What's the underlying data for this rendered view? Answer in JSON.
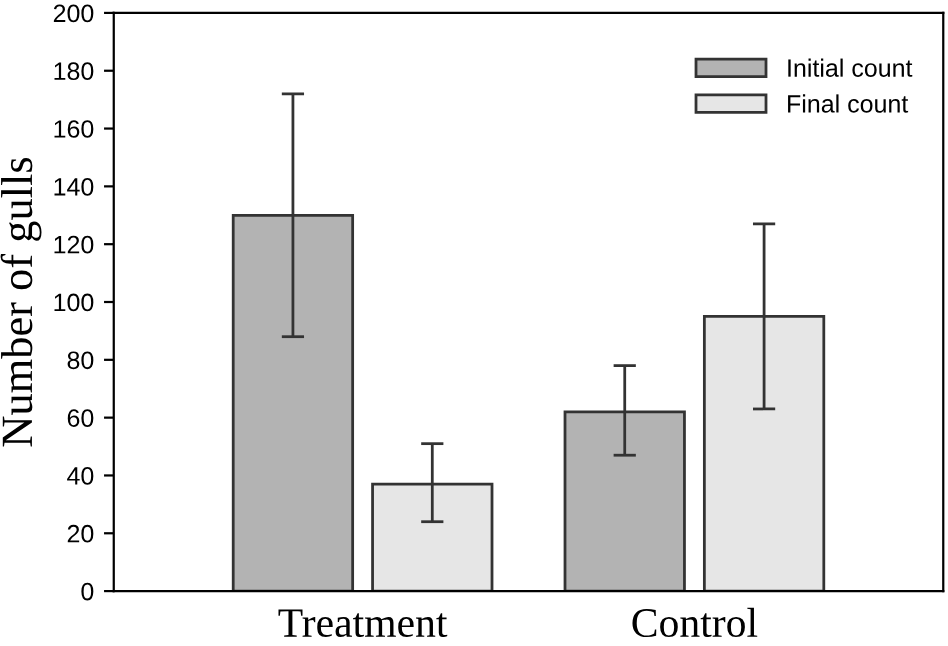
{
  "chart_data": {
    "type": "bar",
    "ylabel": "Number of gulls",
    "categories": [
      "Treatment",
      "Control"
    ],
    "series": [
      {
        "name": "Initial count",
        "color": "#b3b3b3",
        "values": [
          130,
          62
        ],
        "errors": [
          [
            88,
            172
          ],
          [
            47,
            78
          ]
        ]
      },
      {
        "name": "Final count",
        "color": "#e6e6e6",
        "values": [
          37,
          95
        ],
        "errors": [
          [
            24,
            51
          ],
          [
            63,
            127
          ]
        ]
      }
    ],
    "ylim": [
      0,
      200
    ],
    "yticks": [
      0,
      20,
      40,
      60,
      80,
      100,
      120,
      140,
      160,
      180,
      200
    ],
    "legend": "top right",
    "grid": false
  }
}
